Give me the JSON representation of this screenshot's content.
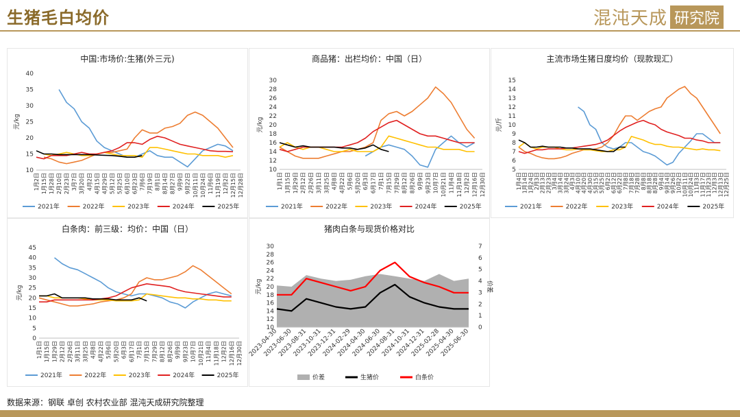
{
  "header": {
    "title": "生猪毛白均价",
    "logo_main": "混沌天成",
    "logo_box": "研究院"
  },
  "source": "数据来源：钢联  卓创  农村农业部  混沌天成研究院整理",
  "colors": {
    "y2021": "#5b9bd5",
    "y2022": "#ed7d31",
    "y2023": "#ffc000",
    "y2024": "#e02020",
    "y2025": "#000000",
    "gap": "#b0b0b0",
    "pig": "#000000",
    "carcass": "#ff0000"
  },
  "chart_data": [
    {
      "id": "c1",
      "type": "line",
      "title": "中国:市场价:生猪(外三元)",
      "ylabel": "元/kg",
      "ylim": [
        10,
        40
      ],
      "yticks": [
        10,
        15,
        20,
        25,
        30,
        35,
        40
      ],
      "categories": [
        "1月2日",
        "1月15日",
        "1月28日",
        "2月10日",
        "2月23日",
        "3月7日",
        "3月20日",
        "4月2日",
        "4月15日",
        "4月29日",
        "5月12日",
        "5月25日",
        "6月10日",
        "6月23日",
        "7月6日",
        "7月19日",
        "8月1日",
        "8月14日",
        "8月27日",
        "9月9日",
        "9月22日",
        "10月11日",
        "10月24日",
        "11月6日",
        "11月19日",
        "12月2日",
        "12月15日",
        "12月28日"
      ],
      "series": [
        {
          "name": "2021年",
          "color": "y2021",
          "values": [
            null,
            null,
            null,
            35,
            31,
            29,
            25,
            23,
            19,
            17,
            16,
            15,
            14,
            14,
            15,
            16,
            14.5,
            14,
            14,
            12.5,
            11,
            13.5,
            16,
            17,
            18,
            17.5,
            16,
            null
          ]
        },
        {
          "name": "2022年",
          "color": "y2022",
          "values": [
            null,
            14,
            13.5,
            12.5,
            12,
            12.5,
            13,
            14,
            15,
            15.5,
            15.5,
            16,
            16.5,
            20,
            22.5,
            21.5,
            21.5,
            23,
            23.5,
            24.5,
            27,
            28,
            27,
            25,
            23,
            20,
            17,
            null
          ]
        },
        {
          "name": "2023年",
          "color": "y2023",
          "values": [
            null,
            15,
            14.5,
            15,
            15.5,
            15,
            14.5,
            14.5,
            15,
            15.5,
            15,
            14.5,
            14.5,
            14.5,
            14,
            17,
            17,
            16.5,
            16,
            15.5,
            15,
            15,
            14.5,
            14.5,
            14.5,
            14,
            14.5,
            null
          ]
        },
        {
          "name": "2024年",
          "color": "y2024",
          "values": [
            14,
            13.5,
            14.5,
            14.5,
            14.5,
            15,
            15.5,
            15,
            15,
            15.5,
            16,
            17,
            18.5,
            18.5,
            18,
            19.5,
            20.5,
            20,
            19,
            18,
            17.5,
            17,
            16.5,
            16,
            15.8,
            15.8,
            15.7,
            null
          ]
        },
        {
          "name": "2025年",
          "color": "y2025",
          "values": [
            16,
            15,
            15,
            14.8,
            14.8,
            14.8,
            14.8,
            14.8,
            14.7,
            14.6,
            14.5,
            14.3,
            14,
            14,
            14.5,
            null,
            null,
            null,
            null,
            null,
            null,
            null,
            null,
            null,
            null,
            null,
            null,
            null
          ]
        }
      ]
    },
    {
      "id": "c2",
      "type": "line",
      "title": "商品猪：出栏均价：中国（日）",
      "ylabel": "元/kg",
      "ylim": [
        10,
        30
      ],
      "yticks": [
        10,
        12,
        14,
        16,
        18,
        20,
        22,
        24,
        26,
        28,
        30
      ],
      "categories": [
        "1月1日",
        "1月15日",
        "1月29日",
        "2月12日",
        "2月26日",
        "3月11日",
        "3月25日",
        "4月8日",
        "4月22日",
        "5月6日",
        "5月20日",
        "6月3日",
        "6月17日",
        "7月1日",
        "7月15日",
        "7月29日",
        "8月12日",
        "8月26日",
        "9月9日",
        "9月23日",
        "10月7日",
        "10月21日",
        "11月4日",
        "11月18日",
        "12月2日",
        "12月16日",
        "12月30日"
      ],
      "series": [
        {
          "name": "2021年",
          "color": "y2021",
          "values": [
            null,
            null,
            null,
            null,
            null,
            null,
            null,
            null,
            null,
            null,
            null,
            13,
            14,
            15,
            15.5,
            15,
            14.5,
            13,
            11,
            10.5,
            14.5,
            16,
            17.5,
            16,
            15,
            16,
            null
          ]
        },
        {
          "name": "2022年",
          "color": "y2022",
          "values": [
            15,
            14,
            13,
            12.5,
            12.5,
            12.5,
            13,
            13.5,
            14,
            14,
            14.5,
            15,
            16,
            21,
            22.5,
            23,
            22,
            23,
            24.5,
            26,
            28.5,
            27,
            25,
            22,
            19,
            17,
            null
          ]
        },
        {
          "name": "2023年",
          "color": "y2023",
          "values": [
            15,
            16,
            15,
            14.5,
            15,
            15,
            14.5,
            14,
            14,
            14.5,
            14,
            14,
            14,
            15,
            17.5,
            17,
            16.5,
            16,
            15.5,
            15,
            15,
            14.5,
            14.5,
            14.5,
            14,
            14,
            null
          ]
        },
        {
          "name": "2024年",
          "color": "y2024",
          "values": [
            14.5,
            14,
            14.5,
            15,
            15,
            15,
            15,
            15,
            15,
            15.5,
            16,
            17,
            18.5,
            19.5,
            20.5,
            21,
            20,
            19,
            18,
            17.5,
            17.5,
            17,
            16.5,
            16,
            16,
            16,
            null
          ]
        },
        {
          "name": "2025年",
          "color": "y2025",
          "values": [
            16,
            15.5,
            15,
            15.3,
            15,
            15,
            15,
            15,
            14.8,
            14.8,
            14.5,
            14.8,
            15.5,
            14.5,
            14,
            null,
            null,
            null,
            null,
            null,
            null,
            null,
            null,
            null,
            null,
            null,
            null
          ]
        }
      ]
    },
    {
      "id": "c3",
      "type": "line",
      "title": "主流市场生猪日度均价（现款现汇）",
      "ylabel": "元/斤",
      "ylim": [
        5,
        15
      ],
      "yticks": [
        5,
        6,
        7,
        8,
        9,
        10,
        11,
        12,
        13,
        14,
        15
      ],
      "categories": [
        "1月4日",
        "1月14日",
        "1月24日",
        "2月3日",
        "2月13日",
        "2月23日",
        "3月4日",
        "3月14日",
        "3月24日",
        "4月3日",
        "4月10日",
        "4月20日",
        "4月30日",
        "5月15日",
        "5月25日",
        "6月2日",
        "6月12日",
        "6月22日",
        "7月8日",
        "7月18日",
        "7月28日",
        "8月8日",
        "8月18日",
        "8月28日",
        "9月4日",
        "9月14日",
        "9月26日",
        "10月2日",
        "10月11日",
        "10月24日",
        "11月3日",
        "11月17日",
        "11月23日",
        "12月3日",
        "12月13日",
        "12月25日"
      ],
      "series": [
        {
          "name": "2021年",
          "color": "y2021",
          "values": [
            null,
            null,
            null,
            null,
            null,
            null,
            null,
            null,
            null,
            null,
            12,
            11.5,
            10,
            9.5,
            8,
            7.5,
            7.3,
            7.5,
            8,
            8,
            7.5,
            7,
            6.8,
            6.5,
            6,
            5.5,
            5.8,
            6.8,
            7.5,
            8.2,
            9,
            9,
            8.5,
            8,
            8,
            null
          ]
        },
        {
          "name": "2022年",
          "color": "y2022",
          "values": [
            7.5,
            7,
            6.8,
            6.5,
            6.3,
            6.2,
            6.2,
            6.3,
            6.5,
            6.8,
            7,
            7.2,
            7.2,
            7.3,
            7.5,
            8,
            8.8,
            10,
            11,
            11,
            10.5,
            11,
            11.5,
            11.8,
            12,
            13,
            13.5,
            14,
            14.3,
            13.5,
            13,
            12,
            11,
            10,
            9,
            null
          ]
        },
        {
          "name": "2023年",
          "color": "y2023",
          "values": [
            7.5,
            8,
            7.5,
            7.3,
            7.5,
            7.5,
            7.5,
            7.3,
            7.2,
            7.2,
            7.3,
            7.2,
            7.2,
            7.1,
            7,
            7,
            7.2,
            7.2,
            7.5,
            8.7,
            8.5,
            8.3,
            8,
            7.8,
            7.8,
            7.6,
            7.5,
            7.5,
            7.4,
            7.3,
            7.2,
            7.3,
            7.2,
            7.2,
            7.1,
            null
          ]
        },
        {
          "name": "2024年",
          "color": "y2024",
          "values": [
            7,
            6.8,
            7,
            7.2,
            7.2,
            7.3,
            7.3,
            7.3,
            7.4,
            7.4,
            7.5,
            7.6,
            7.7,
            7.8,
            8,
            8.3,
            8.8,
            9.3,
            9.7,
            10,
            10.3,
            10.5,
            10.2,
            10,
            9.5,
            9.2,
            9,
            8.8,
            8.5,
            8.5,
            8.3,
            8.2,
            8,
            8,
            8,
            null
          ]
        },
        {
          "name": "2025年",
          "color": "y2025",
          "values": [
            8.3,
            8,
            7.5,
            7.5,
            7.6,
            7.5,
            7.5,
            7.5,
            7.4,
            7.4,
            7.3,
            7.3,
            7.3,
            7.2,
            7.1,
            7,
            7,
            7.5,
            7.5,
            null,
            null,
            null,
            null,
            null,
            null,
            null,
            null,
            null,
            null,
            null,
            null,
            null,
            null,
            null,
            null,
            null
          ]
        }
      ]
    },
    {
      "id": "c4",
      "type": "line",
      "title": "白条肉：前三级：均价：中国（日）",
      "ylabel": "元/kg",
      "ylim": [
        0,
        45
      ],
      "yticks": [
        0,
        5,
        10,
        15,
        20,
        25,
        30,
        35,
        40,
        45
      ],
      "categories": [
        "1月1日",
        "1月15日",
        "1月29日",
        "2月12日",
        "2月26日",
        "3月11日",
        "3月25日",
        "4月8日",
        "4月22日",
        "5月6日",
        "5月20日",
        "6月3日",
        "6月17日",
        "7月1日",
        "7月15日",
        "7月29日",
        "8月12日",
        "8月26日",
        "9月9日",
        "9月23日",
        "10月7日",
        "10月21日",
        "11月4日",
        "11月18日",
        "12月2日",
        "12月16日",
        "12月30日"
      ],
      "series": [
        {
          "name": "2021年",
          "color": "y2021",
          "values": [
            null,
            null,
            40,
            37,
            35,
            34,
            32,
            30,
            28,
            25,
            23,
            22,
            21,
            22,
            22,
            21,
            20,
            18,
            17,
            15,
            18,
            20,
            22,
            23,
            22,
            21,
            null
          ]
        },
        {
          "name": "2022年",
          "color": "y2022",
          "values": [
            20,
            19,
            18,
            17,
            16,
            16,
            16.5,
            17,
            18,
            18.5,
            19,
            20,
            22,
            28,
            30,
            29,
            29,
            30,
            31,
            33,
            36,
            34,
            31,
            28,
            25,
            22,
            null
          ]
        },
        {
          "name": "2023年",
          "color": "y2023",
          "values": [
            21,
            21,
            20,
            20,
            20,
            20,
            19.5,
            19,
            19,
            19,
            18.5,
            18.5,
            18.5,
            19,
            22,
            21.5,
            21,
            20.5,
            20,
            20,
            19.5,
            19.5,
            19,
            19,
            18.5,
            18.5,
            null
          ]
        },
        {
          "name": "2024年",
          "color": "y2024",
          "values": [
            18,
            18,
            19,
            19,
            19,
            19,
            19,
            19,
            19.5,
            20,
            21,
            23,
            25,
            26,
            27,
            26.5,
            26,
            25.5,
            24,
            23,
            22.5,
            22,
            21.5,
            21,
            20.5,
            20.5,
            null
          ]
        },
        {
          "name": "2025年",
          "color": "y2025",
          "values": [
            21,
            21,
            22,
            20,
            20,
            20,
            20,
            19.5,
            19.5,
            19.5,
            19,
            19,
            19,
            20,
            18.5,
            null,
            null,
            null,
            null,
            null,
            null,
            null,
            null,
            null,
            null,
            null,
            null
          ]
        }
      ]
    },
    {
      "id": "c5",
      "type": "area+line",
      "title": "猪肉白条与现货价格对比",
      "ylabel": "元/kg",
      "y2label": "价差",
      "ylim": [
        10,
        30
      ],
      "yticks": [
        10,
        12,
        14,
        16,
        18,
        20,
        22,
        24,
        26,
        28,
        30
      ],
      "y2lim": [
        0,
        7
      ],
      "y2ticks": [
        0,
        1,
        2,
        3,
        4,
        5,
        6,
        7
      ],
      "categories": [
        "2023-04-30",
        "2023-06-30",
        "2023-08-31",
        "2023-10-31",
        "2023-12-31",
        "2024-02-29",
        "2024-04-30",
        "2024-06-30",
        "2024-08-31",
        "2024-10-31",
        "2024-12-31",
        "2025-02-28",
        "2025-04-30",
        "2025-06-30"
      ],
      "series": [
        {
          "name": "价差",
          "color": "gap",
          "axis": "right",
          "values": [
            3.6,
            3.5,
            4.5,
            4.2,
            4.0,
            4.1,
            4.4,
            4.6,
            4.4,
            4.2,
            4.0,
            4.6,
            4.0,
            4.2
          ]
        },
        {
          "name": "生猪价",
          "color": "pig",
          "axis": "left",
          "values": [
            14.5,
            14,
            17,
            16,
            15,
            14.5,
            15,
            18.5,
            20.5,
            17.5,
            16,
            15,
            14.5,
            14.5
          ]
        },
        {
          "name": "白条价",
          "color": "carcass",
          "axis": "left",
          "values": [
            18,
            18,
            22,
            21,
            20,
            19,
            20,
            24,
            26,
            22.5,
            21,
            20,
            18.5,
            18.5
          ]
        }
      ]
    }
  ]
}
